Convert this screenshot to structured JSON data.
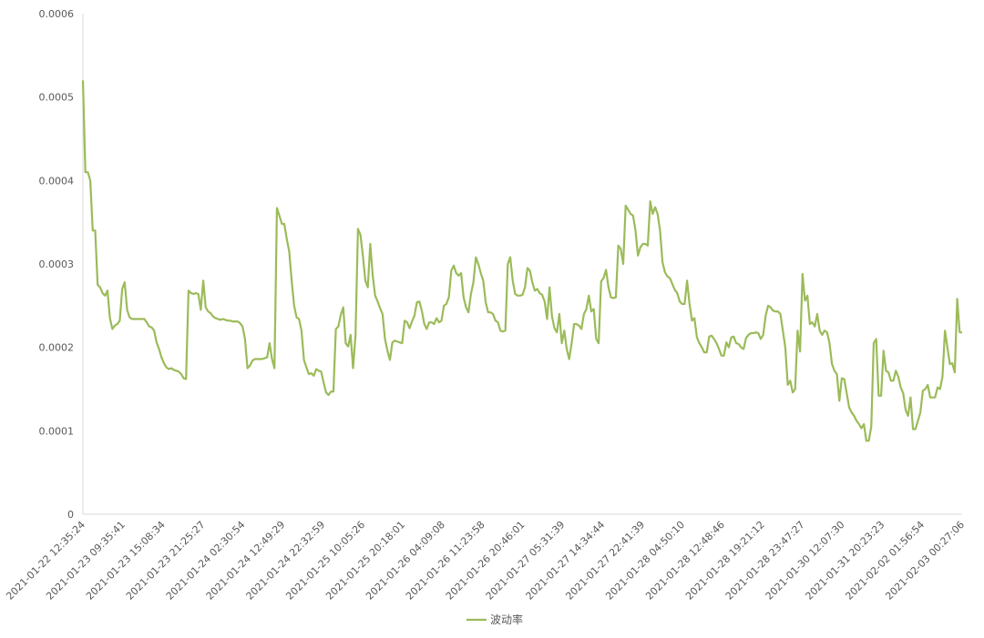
{
  "chart_data": {
    "type": "line",
    "title": "",
    "xlabel": "",
    "ylabel": "",
    "ylim": [
      0,
      0.0006
    ],
    "yticks": [
      "0",
      "0.0001",
      "0.0002",
      "0.0003",
      "0.0004",
      "0.0005",
      "0.0006"
    ],
    "x_tick_labels": [
      "2021-01-22 12:35:24",
      "2021-01-23 09:35:41",
      "2021-01-23 15:08:34",
      "2021-01-23 21:25:27",
      "2021-01-24 02:30:54",
      "2021-01-24 12:49:29",
      "2021-01-24 22:32:59",
      "2021-01-25 10:05:26",
      "2021-01-25 20:18:01",
      "2021-01-26 04:09:08",
      "2021-01-26 11:23:58",
      "2021-01-26 20:46:01",
      "2021-01-27 05:31:39",
      "2021-01-27 14:34:44",
      "2021-01-27 22:41:39",
      "2021-01-28 04:50:10",
      "2021-01-28 12:48:46",
      "2021-01-28 19:21:12",
      "2021-01-28 23:47:27",
      "2021-01-30 12:07:30",
      "2021-01-31 20:23:23",
      "2021-02-02 01:56:54",
      "2021-02-03 00:27:06"
    ],
    "legend_position": "bottom",
    "grid": false,
    "series": [
      {
        "name": "波动率",
        "color": "#9BBB59",
        "values": [
          0.00052,
          0.00041,
          0.00041,
          0.0004,
          0.00034,
          0.00034,
          0.000275,
          0.000272,
          0.000265,
          0.000262,
          0.000268,
          0.000235,
          0.000222,
          0.000226,
          0.000228,
          0.000232,
          0.00027,
          0.000278,
          0.000245,
          0.000236,
          0.000234,
          0.000234,
          0.000234,
          0.000234,
          0.000234,
          0.000234,
          0.00023,
          0.000225,
          0.000224,
          0.00022,
          0.000206,
          0.000198,
          0.000188,
          0.000181,
          0.000176,
          0.000174,
          0.000175,
          0.000173,
          0.000172,
          0.000171,
          0.000168,
          0.000163,
          0.000162,
          0.000268,
          0.000265,
          0.000264,
          0.000265,
          0.000264,
          0.000245,
          0.00028,
          0.000248,
          0.000243,
          0.000241,
          0.000237,
          0.000235,
          0.000234,
          0.000233,
          0.000234,
          0.000233,
          0.000232,
          0.000232,
          0.000231,
          0.000231,
          0.000231,
          0.000229,
          0.000225,
          0.00021,
          0.000175,
          0.000178,
          0.000184,
          0.000186,
          0.000186,
          0.000186,
          0.000186,
          0.000187,
          0.000188,
          0.000205,
          0.000186,
          0.000175,
          0.000367,
          0.000358,
          0.000348,
          0.000348,
          0.00033,
          0.000315,
          0.00028,
          0.00025,
          0.000236,
          0.000234,
          0.00022,
          0.000185,
          0.000176,
          0.000168,
          0.000169,
          0.000166,
          0.000174,
          0.000172,
          0.000171,
          0.000158,
          0.000146,
          0.000143,
          0.000147,
          0.000147,
          0.000222,
          0.000225,
          0.000239,
          0.000248,
          0.000205,
          0.000201,
          0.000215,
          0.000175,
          0.000215,
          0.000342,
          0.000335,
          0.00031,
          0.00028,
          0.000272,
          0.000324,
          0.000286,
          0.000262,
          0.000255,
          0.000247,
          0.00024,
          0.00021,
          0.000196,
          0.000185,
          0.000206,
          0.000208,
          0.000207,
          0.000206,
          0.000205,
          0.000232,
          0.00023,
          0.000223,
          0.000231,
          0.000238,
          0.000254,
          0.000255,
          0.000244,
          0.000228,
          0.000222,
          0.00023,
          0.00023,
          0.000228,
          0.000235,
          0.00023,
          0.000232,
          0.00025,
          0.000252,
          0.00026,
          0.000292,
          0.000298,
          0.000289,
          0.000286,
          0.000289,
          0.00026,
          0.000248,
          0.000242,
          0.000264,
          0.000278,
          0.000308,
          0.0003,
          0.000289,
          0.00028,
          0.000254,
          0.000242,
          0.000242,
          0.00024,
          0.000232,
          0.00023,
          0.00022,
          0.000219,
          0.00022,
          0.0003,
          0.000308,
          0.00028,
          0.000264,
          0.000262,
          0.000262,
          0.000263,
          0.000272,
          0.000295,
          0.000292,
          0.000278,
          0.000268,
          0.00027,
          0.000265,
          0.000263,
          0.000255,
          0.000234,
          0.000272,
          0.000237,
          0.000223,
          0.000218,
          0.00024,
          0.000205,
          0.00022,
          0.000198,
          0.000186,
          0.000205,
          0.000228,
          0.000228,
          0.000226,
          0.000222,
          0.00024,
          0.000246,
          0.000262,
          0.000243,
          0.000246,
          0.00021,
          0.000205,
          0.000279,
          0.000283,
          0.000293,
          0.000272,
          0.00026,
          0.000259,
          0.00026,
          0.000322,
          0.000318,
          0.0003,
          0.00037,
          0.000365,
          0.00036,
          0.000358,
          0.00034,
          0.00031,
          0.00032,
          0.000324,
          0.000324,
          0.000322,
          0.000375,
          0.00036,
          0.000368,
          0.00036,
          0.00034,
          0.000302,
          0.00029,
          0.000285,
          0.000283,
          0.000276,
          0.000269,
          0.000265,
          0.000255,
          0.000252,
          0.000252,
          0.00028,
          0.000252,
          0.000232,
          0.000235,
          0.000212,
          0.000205,
          0.0002,
          0.000194,
          0.000194,
          0.000213,
          0.000214,
          0.00021,
          0.000205,
          0.000198,
          0.00019,
          0.00019,
          0.000206,
          0.0002,
          0.000212,
          0.000213,
          0.000205,
          0.000204,
          0.0002,
          0.000198,
          0.000211,
          0.000215,
          0.000217,
          0.000217,
          0.000218,
          0.000217,
          0.00021,
          0.000215,
          0.000238,
          0.00025,
          0.000248,
          0.000244,
          0.000243,
          0.000243,
          0.00024,
          0.00022,
          0.0002,
          0.000155,
          0.00016,
          0.000146,
          0.00015,
          0.00022,
          0.000195,
          0.000288,
          0.000256,
          0.000262,
          0.000228,
          0.00023,
          0.000225,
          0.00024,
          0.00022,
          0.000215,
          0.00022,
          0.000218,
          0.000205,
          0.00018,
          0.000172,
          0.000168,
          0.000136,
          0.000163,
          0.000162,
          0.000145,
          0.000128,
          0.000122,
          0.000118,
          0.000112,
          0.000108,
          0.000103,
          0.000108,
          8.8e-05,
          8.8e-05,
          0.000105,
          0.000205,
          0.00021,
          0.000142,
          0.000142,
          0.000196,
          0.000172,
          0.00017,
          0.00016,
          0.00016,
          0.000172,
          0.000165,
          0.000152,
          0.000145,
          0.000125,
          0.000118,
          0.00014,
          0.000102,
          0.000102,
          0.000112,
          0.000122,
          0.000148,
          0.00015,
          0.000155,
          0.00014,
          0.00014,
          0.00014,
          0.000152,
          0.00015,
          0.000165,
          0.00022,
          0.0002,
          0.00018,
          0.000181,
          0.00017,
          0.000258,
          0.000218,
          0.000218
        ]
      }
    ]
  }
}
